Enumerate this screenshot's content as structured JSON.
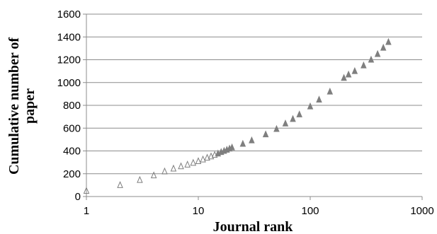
{
  "chart_data": {
    "type": "scatter",
    "title": "",
    "xlabel": "Journal rank",
    "ylabel": "Cumulative number of paper",
    "ylabel_lines": [
      "Cumulative number of",
      "paper"
    ],
    "x_scale": "log",
    "xlim": [
      1,
      1000
    ],
    "ylim": [
      0,
      1600
    ],
    "x_ticks": [
      1,
      10,
      100,
      1000
    ],
    "x_tick_labels": [
      "1",
      "10",
      "100",
      "1000"
    ],
    "y_ticks": [
      0,
      200,
      400,
      600,
      800,
      1000,
      1200,
      1400,
      1600
    ],
    "y_tick_labels": [
      "0",
      "200",
      "400",
      "600",
      "800",
      "1000",
      "1200",
      "1400",
      "1600"
    ],
    "grid": "horizontal",
    "legend": "none",
    "series": [
      {
        "marker": "triangle-open",
        "color": "#7f7f7f",
        "x": [
          1,
          2,
          3,
          4,
          5,
          6,
          7,
          8,
          9,
          10,
          11,
          12,
          13,
          14,
          15,
          16,
          17,
          18,
          19,
          20,
          25,
          30,
          40,
          50,
          60,
          70,
          80,
          100,
          120,
          150,
          200,
          220,
          250,
          300,
          350,
          400,
          450,
          500
        ],
        "y": [
          50,
          100,
          145,
          185,
          220,
          245,
          265,
          280,
          295,
          310,
          325,
          340,
          352,
          365,
          377,
          390,
          400,
          410,
          420,
          430,
          462,
          492,
          545,
          592,
          640,
          680,
          720,
          790,
          850,
          920,
          1040,
          1070,
          1100,
          1150,
          1200,
          1250,
          1305,
          1355
        ]
      }
    ]
  }
}
